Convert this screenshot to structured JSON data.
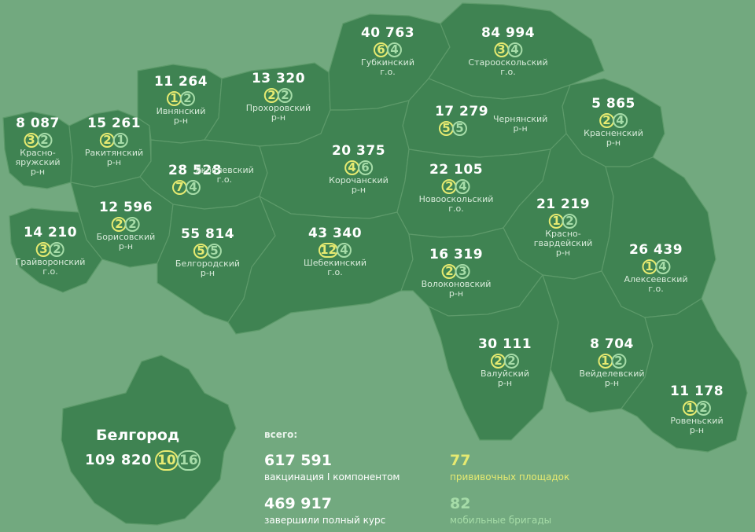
{
  "colors": {
    "background": "#72a97f",
    "region": "#3f8352",
    "border": "#5d9a6a",
    "vaccination_points": "#e6ea71",
    "mobile_teams": "#a6dca8"
  },
  "districts": [
    {
      "id": "krasnoyaruzhsky",
      "value": "8 087",
      "points": "3",
      "teams": "2",
      "name": "Красно-\nяружский\nр-н"
    },
    {
      "id": "rakityansky",
      "value": "15 261",
      "points": "2",
      "teams": "1",
      "name": "Ракитянский\nр-н"
    },
    {
      "id": "ivnyansky",
      "value": "11 264",
      "points": "1",
      "teams": "2",
      "name": "Ивнянский\nр-н"
    },
    {
      "id": "prokhorovsky",
      "value": "13 320",
      "points": "2",
      "teams": "2",
      "name": "Прохоровский\nр-н"
    },
    {
      "id": "gubkinsky",
      "value": "40 763",
      "points": "6",
      "teams": "4",
      "name": "Губкинский\nг.о."
    },
    {
      "id": "starooskolsky",
      "value": "84 994",
      "points": "3",
      "teams": "4",
      "name": "Старооскольский\nг.о."
    },
    {
      "id": "krasnensky",
      "value": "5 865",
      "points": "2",
      "teams": "4",
      "name": "Красненский\nр-н"
    },
    {
      "id": "chernyansky",
      "value": "17 279",
      "points": "5",
      "teams": "5",
      "name": "Чернянский\nр-н"
    },
    {
      "id": "yakovlevsky",
      "value": "28 528",
      "points": "7",
      "teams": "4",
      "name": "Яковлевский\nг.о."
    },
    {
      "id": "korochansky",
      "value": "20 375",
      "points": "4",
      "teams": "6",
      "name": "Корочанский\nр-н"
    },
    {
      "id": "novooskolsky",
      "value": "22 105",
      "points": "2",
      "teams": "4",
      "name": "Новооскольский\nг.о."
    },
    {
      "id": "borisovsky",
      "value": "12 596",
      "points": "2",
      "teams": "2",
      "name": "Борисовский\nр-н"
    },
    {
      "id": "grayvoronsky",
      "value": "14 210",
      "points": "3",
      "teams": "2",
      "name": "Грайворонский\nг.о."
    },
    {
      "id": "belgorodsky",
      "value": "55 814",
      "points": "5",
      "teams": "5",
      "name": "Белгородский\nр-н"
    },
    {
      "id": "shebekinsky",
      "value": "43 340",
      "points": "12",
      "teams": "4",
      "name": "Шебекинский\nг.о."
    },
    {
      "id": "krasnogvardeysky",
      "value": "21 219",
      "points": "1",
      "teams": "2",
      "name": "Красно-\nгвардейский\nр-н"
    },
    {
      "id": "alekseevsky",
      "value": "26 439",
      "points": "1",
      "teams": "4",
      "name": "Алексеевский\nг.о."
    },
    {
      "id": "volokonovsky",
      "value": "16 319",
      "points": "2",
      "teams": "3",
      "name": "Волоконовский\nр-н"
    },
    {
      "id": "valuysky",
      "value": "30 111",
      "points": "2",
      "teams": "2",
      "name": "Валуйский\nр-н"
    },
    {
      "id": "veydelevsky",
      "value": "8 704",
      "points": "1",
      "teams": "2",
      "name": "Вейделевский\nр-н"
    },
    {
      "id": "rovensky",
      "value": "11 178",
      "points": "1",
      "teams": "2",
      "name": "Ровеньский\nр-н"
    }
  ],
  "belgorod": {
    "title": "Белгород",
    "value": "109 820",
    "points": "10",
    "teams": "16"
  },
  "totals": {
    "heading": "всего:",
    "first_component_value": "617 591",
    "first_component_label": "вакцинация I компонентом",
    "full_course_value": "469 917",
    "full_course_label": "завершили полный курс",
    "vaccination_points_value": "77",
    "vaccination_points_label": "прививочных площадок",
    "mobile_teams_value": "82",
    "mobile_teams_label": "мобильные бригады"
  }
}
